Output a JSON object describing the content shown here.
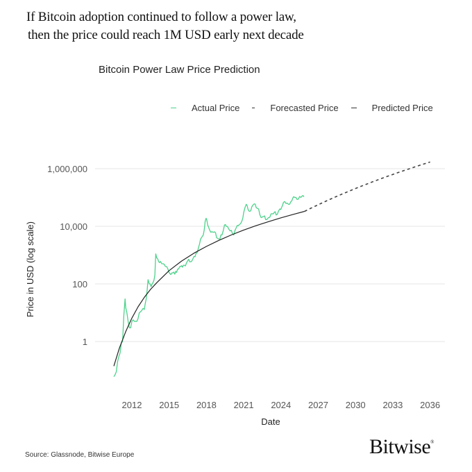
{
  "headline": {
    "line1": "If Bitcoin adoption continued to follow a power law,",
    "line2": "then the price could reach 1M USD early next decade"
  },
  "footer": {
    "source": "Source: Glassnode, Bitwise Europe",
    "brand": "Bitwise",
    "brand_mark": "®"
  },
  "colors": {
    "actual": "#4cd28a",
    "predicted": "#222222",
    "grid": "#e6e6e6"
  },
  "chart_data": {
    "type": "line",
    "title": "Bitcoin Power Law Price Prediction",
    "xlabel": "Date",
    "ylabel": "Price in USD (log scale)",
    "yscale": "log",
    "ylim": [
      0.03,
      3000000
    ],
    "xlim": [
      2010.0,
      2037.5
    ],
    "grid": true,
    "legend_position": "top-right",
    "legend": [
      "Actual Price",
      "Forecasted Price",
      "Predicted Price"
    ],
    "y_ticks": [
      {
        "value": 1000000,
        "label": "1,000,000"
      },
      {
        "value": 10000,
        "label": "10,000"
      },
      {
        "value": 100,
        "label": "100"
      },
      {
        "value": 1,
        "label": "1"
      }
    ],
    "x_ticks": [
      "2012",
      "2015",
      "2018",
      "2021",
      "2024",
      "2027",
      "2030",
      "2033",
      "2036"
    ],
    "series": [
      {
        "name": "Actual Price",
        "style": "solid",
        "x": [
          2010.55,
          2010.65,
          2010.75,
          2010.85,
          2010.95,
          2011.05,
          2011.15,
          2011.25,
          2011.35,
          2011.45,
          2011.5,
          2011.6,
          2011.7,
          2011.8,
          2011.9,
          2012.0,
          2012.2,
          2012.4,
          2012.6,
          2012.8,
          2013.0,
          2013.15,
          2013.3,
          2013.4,
          2013.55,
          2013.7,
          2013.85,
          2013.92,
          2014.0,
          2014.15,
          2014.3,
          2014.5,
          2014.7,
          2014.9,
          2015.05,
          2015.3,
          2015.6,
          2015.85,
          2016.0,
          2016.3,
          2016.5,
          2016.8,
          2017.0,
          2017.25,
          2017.45,
          2017.6,
          2017.75,
          2017.9,
          2017.97,
          2018.1,
          2018.25,
          2018.45,
          2018.65,
          2018.9,
          2019.0,
          2019.25,
          2019.45,
          2019.6,
          2019.8,
          2020.0,
          2020.2,
          2020.4,
          2020.65,
          2020.85,
          2021.0,
          2021.2,
          2021.35,
          2021.5,
          2021.65,
          2021.85,
          2022.0,
          2022.2,
          2022.4,
          2022.6,
          2022.85,
          2023.0,
          2023.2,
          2023.45,
          2023.7,
          2023.9,
          2024.05,
          2024.2,
          2024.4,
          2024.6,
          2024.8,
          2024.95,
          2025.1,
          2025.3,
          2025.5,
          2025.7,
          2025.85
        ],
        "y": [
          0.06,
          0.07,
          0.09,
          0.2,
          0.3,
          0.4,
          0.9,
          1.0,
          8,
          30,
          15,
          10,
          5,
          3,
          3,
          5,
          5,
          5,
          10,
          12,
          13,
          30,
          140,
          100,
          80,
          110,
          200,
          1100,
          800,
          600,
          600,
          500,
          400,
          330,
          230,
          240,
          250,
          400,
          430,
          420,
          650,
          600,
          900,
          1200,
          2500,
          4000,
          5000,
          15000,
          19000,
          11000,
          7500,
          6500,
          6400,
          3800,
          3600,
          5000,
          11000,
          10000,
          8000,
          7200,
          5000,
          9000,
          11500,
          15000,
          30000,
          58000,
          38000,
          33000,
          47000,
          60000,
          45000,
          40000,
          20000,
          22000,
          17000,
          20000,
          27000,
          30000,
          26000,
          40000,
          45000,
          68000,
          62000,
          58000,
          72000,
          95000,
          100000,
          85000,
          108000,
          112000,
          105000
        ]
      },
      {
        "name": "Predicted Price",
        "style": "solid",
        "x": [
          2010.55,
          2011.0,
          2011.5,
          2012.0,
          2012.5,
          2013.0,
          2013.5,
          2014.0,
          2015.0,
          2016.0,
          2017.0,
          2018.0,
          2019.0,
          2020.0,
          2021.0,
          2022.0,
          2023.0,
          2024.0,
          2025.0,
          2025.9
        ],
        "y": [
          0.14,
          0.6,
          2.2,
          6.5,
          16,
          34,
          64,
          110,
          290,
          620,
          1170,
          2000,
          3250,
          5000,
          7400,
          10500,
          14500,
          19700,
          26000,
          33000
        ]
      },
      {
        "name": "Forecasted Price",
        "style": "dashed",
        "x": [
          2025.9,
          2027.0,
          2028.0,
          2029.0,
          2030.0,
          2031.0,
          2032.0,
          2033.0,
          2034.0,
          2035.0,
          2036.0
        ],
        "y": [
          33000,
          48000,
          66000,
          89000,
          119000,
          155000,
          200000,
          255000,
          322000,
          400000,
          1700000
        ]
      }
    ]
  }
}
